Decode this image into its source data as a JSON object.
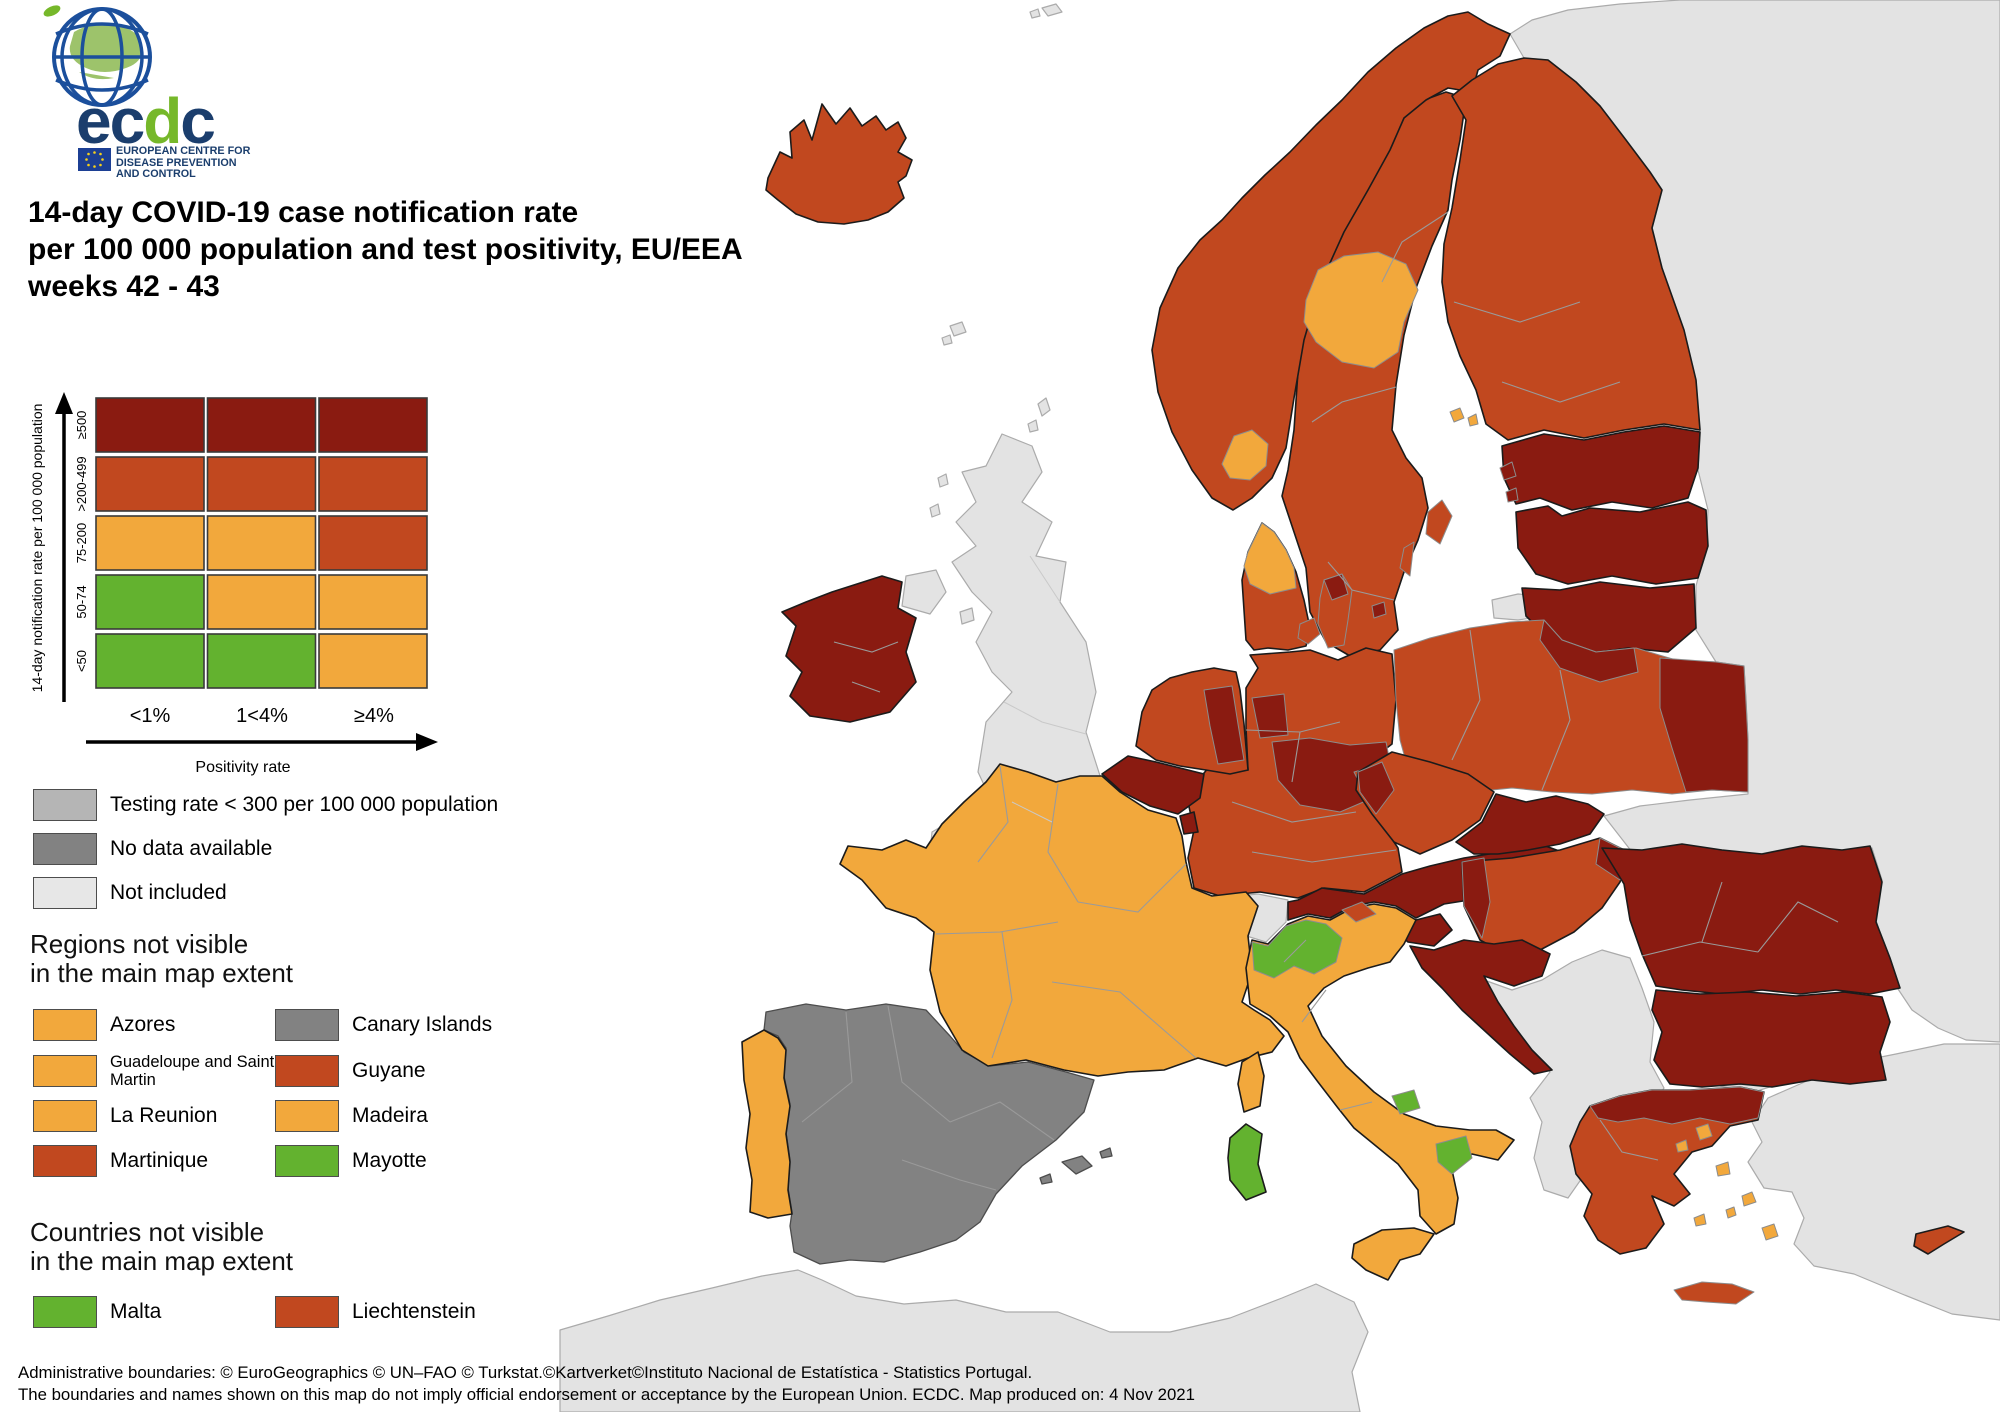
{
  "logo": {
    "brand": "ecdc",
    "org_line1": "EUROPEAN CENTRE FOR",
    "org_line2": "DISEASE PREVENTION",
    "org_line3": "AND CONTROL"
  },
  "title": {
    "line1": "14-day COVID-19 case notification rate",
    "line2": "per 100 000 population and test positivity, EU/EEA",
    "line3": "weeks 42 - 43"
  },
  "matrix_legend": {
    "y_axis_label": "14-day notification rate per 100 000 population",
    "x_axis_label": "Positivity rate",
    "rows": [
      "≥500",
      ">200-499",
      "75-200",
      "50-74",
      "<50"
    ],
    "cols": [
      "<1%",
      "1<4%",
      "≥4%"
    ],
    "cells": [
      [
        "dark_red",
        "dark_red",
        "dark_red"
      ],
      [
        "red",
        "red",
        "red"
      ],
      [
        "orange",
        "orange",
        "red"
      ],
      [
        "green",
        "orange",
        "orange"
      ],
      [
        "green",
        "green",
        "orange"
      ]
    ]
  },
  "colors": {
    "dark_red": "#8A1B11",
    "red": "#C1481F",
    "orange": "#F2A83C",
    "green": "#63B22F",
    "testing_gray": "#B5B5B5",
    "no_data": "#828282",
    "not_included": "#E7E7E7",
    "map_not_included_land": "#E3E3E3",
    "sea": "#FFFFFF"
  },
  "status_legend": [
    {
      "label": "Testing rate < 300 per 100 000 population",
      "color": "testing_gray"
    },
    {
      "label": "No data available",
      "color": "no_data"
    },
    {
      "label": "Not included",
      "color": "not_included"
    }
  ],
  "regions_legend": {
    "heading_line1": "Regions not visible",
    "heading_line2": "in the main map extent",
    "items": [
      {
        "label": "Azores",
        "color": "orange"
      },
      {
        "label": "Canary Islands",
        "color": "no_data"
      },
      {
        "label": "Guadeloupe and Saint Martin",
        "color": "orange",
        "small": true
      },
      {
        "label": "Guyane",
        "color": "red"
      },
      {
        "label": "La Reunion",
        "color": "orange"
      },
      {
        "label": "Madeira",
        "color": "orange"
      },
      {
        "label": "Martinique",
        "color": "red"
      },
      {
        "label": "Mayotte",
        "color": "green"
      }
    ]
  },
  "countries_legend": {
    "heading_line1": "Countries not visible",
    "heading_line2": "in the main map extent",
    "items": [
      {
        "label": "Malta",
        "color": "green"
      },
      {
        "label": "Liechtenstein",
        "color": "red"
      }
    ]
  },
  "footer": {
    "line1": "Administrative boundaries: © EuroGeographics © UN–FAO © Turkstat.©Kartverket©Instituto Nacional de Estatística - Statistics Portugal.",
    "line2": "The boundaries and names shown on this map do not imply official endorsement or acceptance by the European Union. ECDC. Map produced on: 4 Nov 2021"
  },
  "map": {
    "regions": [
      {
        "id": "eastern-europe",
        "category": "not_included"
      },
      {
        "id": "north-africa",
        "category": "not_included"
      },
      {
        "id": "turkey-anatolia",
        "category": "not_included"
      },
      {
        "id": "turkey-thrace",
        "category": "not_included"
      },
      {
        "id": "united-kingdom",
        "category": "not_included"
      },
      {
        "id": "northern-ireland",
        "category": "not_included"
      },
      {
        "id": "scottish-islands",
        "category": "not_included"
      },
      {
        "id": "isle-of-man",
        "category": "not_included"
      },
      {
        "id": "faroe-islands",
        "category": "not_included"
      },
      {
        "id": "svalbard",
        "category": "not_included"
      },
      {
        "id": "western-balkans",
        "category": "not_included"
      },
      {
        "id": "kaliningrad",
        "category": "not_included"
      },
      {
        "id": "switzerland",
        "category": "not_included"
      },
      {
        "id": "iceland",
        "category": "red"
      },
      {
        "id": "ireland",
        "category": "dark_red"
      },
      {
        "id": "sweden",
        "category": "red"
      },
      {
        "id": "norway",
        "category": "red"
      },
      {
        "id": "norway-oslo-region",
        "category": "orange"
      },
      {
        "id": "sweden-central-region",
        "category": "orange"
      },
      {
        "id": "gotland",
        "category": "red"
      },
      {
        "id": "oland",
        "category": "red"
      },
      {
        "id": "finland",
        "category": "red"
      },
      {
        "id": "aland-islands",
        "category": "orange"
      },
      {
        "id": "estonia",
        "category": "dark_red"
      },
      {
        "id": "estonian-islands",
        "category": "dark_red"
      },
      {
        "id": "latvia",
        "category": "dark_red"
      },
      {
        "id": "lithuania",
        "category": "dark_red"
      },
      {
        "id": "germany",
        "category": "red"
      },
      {
        "id": "poland",
        "category": "red"
      },
      {
        "id": "poland-east-region",
        "category": "dark_red"
      },
      {
        "id": "poland-northeast-region",
        "category": "dark_red"
      },
      {
        "id": "germany-east-region",
        "category": "dark_red"
      },
      {
        "id": "germany-northwest-region",
        "category": "dark_red"
      },
      {
        "id": "netherlands",
        "category": "red"
      },
      {
        "id": "netherlands-east-region",
        "category": "dark_red"
      },
      {
        "id": "belgium",
        "category": "dark_red"
      },
      {
        "id": "luxembourg",
        "category": "dark_red"
      },
      {
        "id": "denmark",
        "category": "red"
      },
      {
        "id": "denmark-north-region",
        "category": "orange"
      },
      {
        "id": "fyn",
        "category": "red"
      },
      {
        "id": "zealand",
        "category": "red"
      },
      {
        "id": "copenhagen-region",
        "category": "dark_red"
      },
      {
        "id": "bornholm",
        "category": "dark_red"
      },
      {
        "id": "czechia",
        "category": "red"
      },
      {
        "id": "czechia-west-region",
        "category": "dark_red"
      },
      {
        "id": "austria",
        "category": "dark_red"
      },
      {
        "id": "slovakia",
        "category": "dark_red"
      },
      {
        "id": "hungary",
        "category": "red"
      },
      {
        "id": "hungary-west-region",
        "category": "dark_red"
      },
      {
        "id": "hungary-northeast-region",
        "category": "dark_red"
      },
      {
        "id": "slovenia",
        "category": "dark_red"
      },
      {
        "id": "croatia",
        "category": "dark_red"
      },
      {
        "id": "romania",
        "category": "dark_red"
      },
      {
        "id": "bulgaria",
        "category": "dark_red"
      },
      {
        "id": "spain",
        "category": "no_data"
      },
      {
        "id": "balearic-islands",
        "category": "no_data"
      },
      {
        "id": "portugal",
        "category": "orange"
      },
      {
        "id": "france",
        "category": "orange"
      },
      {
        "id": "corsica",
        "category": "orange"
      },
      {
        "id": "italy",
        "category": "orange"
      },
      {
        "id": "italy-northwest-region",
        "category": "green"
      },
      {
        "id": "south-tyrol-region",
        "category": "red"
      },
      {
        "id": "molise-region",
        "category": "green"
      },
      {
        "id": "basilicata-region",
        "category": "green"
      },
      {
        "id": "sardinia",
        "category": "green"
      },
      {
        "id": "sicily",
        "category": "orange"
      },
      {
        "id": "greece",
        "category": "red"
      },
      {
        "id": "greece-north-region",
        "category": "dark_red"
      },
      {
        "id": "crete",
        "category": "red"
      },
      {
        "id": "greek-islands",
        "category": "orange"
      },
      {
        "id": "cyprus",
        "category": "red"
      }
    ]
  }
}
